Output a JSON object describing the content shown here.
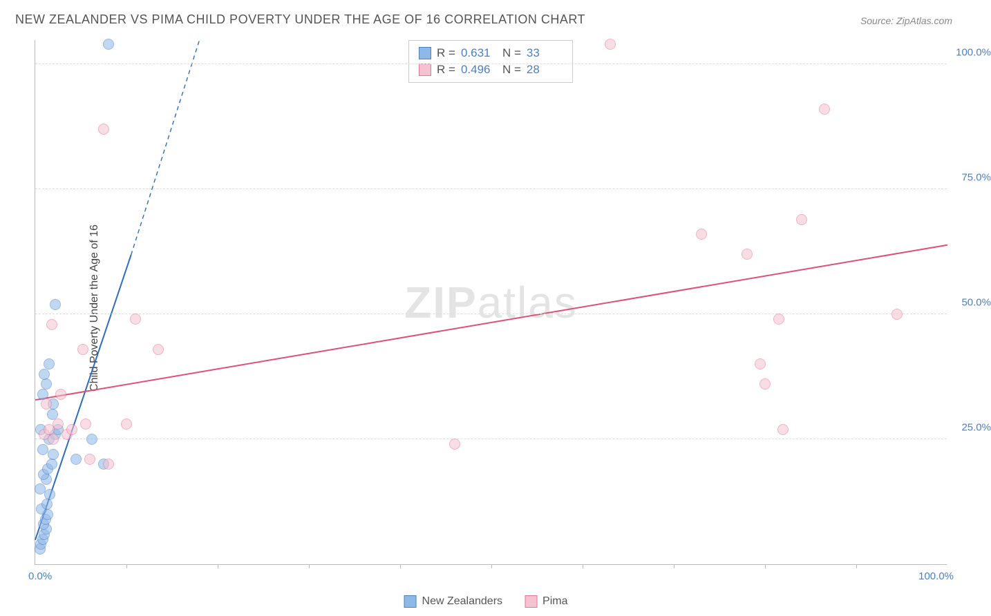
{
  "title": "NEW ZEALANDER VS PIMA CHILD POVERTY UNDER THE AGE OF 16 CORRELATION CHART",
  "source": "Source: ZipAtlas.com",
  "ylabel": "Child Poverty Under the Age of 16",
  "watermark_bold": "ZIP",
  "watermark_light": "atlas",
  "chart": {
    "type": "scatter",
    "xlim": [
      0,
      100
    ],
    "ylim": [
      0,
      105
    ],
    "yticks": [
      25,
      50,
      75,
      100
    ],
    "ytick_labels": [
      "25.0%",
      "50.0%",
      "75.0%",
      "100.0%"
    ],
    "xticks_minor": [
      10,
      20,
      30,
      40,
      50,
      60,
      70,
      80,
      90
    ],
    "xaxis_min_label": "0.0%",
    "xaxis_max_label": "100.0%",
    "background_color": "#ffffff",
    "grid_color": "#dddddd",
    "axis_color": "#bbbbbb",
    "marker_radius": 8,
    "marker_opacity": 0.55,
    "series": [
      {
        "name": "New Zealanders",
        "color_fill": "#8db8e8",
        "color_stroke": "#4a7fc9",
        "R": "0.631",
        "N": "33",
        "trend": {
          "x1": 0,
          "y1": 5,
          "x2_solid": 10.5,
          "y2_solid": 62,
          "x2_dash": 18,
          "y2_dash": 105,
          "color": "#2f6bc0",
          "width": 2
        },
        "points": [
          [
            0.5,
            3
          ],
          [
            0.6,
            4
          ],
          [
            0.8,
            5
          ],
          [
            1.0,
            6
          ],
          [
            1.2,
            7
          ],
          [
            0.9,
            8
          ],
          [
            1.1,
            9
          ],
          [
            1.4,
            10
          ],
          [
            0.7,
            11
          ],
          [
            1.3,
            12
          ],
          [
            1.6,
            14
          ],
          [
            0.5,
            15
          ],
          [
            1.2,
            17
          ],
          [
            0.9,
            18
          ],
          [
            1.4,
            19
          ],
          [
            1.8,
            20
          ],
          [
            2.0,
            22
          ],
          [
            0.8,
            23
          ],
          [
            1.5,
            25
          ],
          [
            2.2,
            26
          ],
          [
            0.6,
            27
          ],
          [
            1.9,
            30
          ],
          [
            2.5,
            27
          ],
          [
            0.8,
            34
          ],
          [
            1.2,
            36
          ],
          [
            1.0,
            38
          ],
          [
            2.0,
            32
          ],
          [
            1.5,
            40
          ],
          [
            2.2,
            52
          ],
          [
            7.5,
            20
          ],
          [
            4.5,
            21
          ],
          [
            6.2,
            25
          ],
          [
            8.0,
            104
          ]
        ]
      },
      {
        "name": "Pima",
        "color_fill": "#f5c2cf",
        "color_stroke": "#e57594",
        "R": "0.496",
        "N": "28",
        "trend": {
          "x1": 0,
          "y1": 33,
          "x2_solid": 100,
          "y2_solid": 64,
          "color": "#e04f76",
          "width": 2
        },
        "points": [
          [
            1.0,
            26
          ],
          [
            1.5,
            27
          ],
          [
            2.0,
            25
          ],
          [
            2.5,
            28
          ],
          [
            3.5,
            26
          ],
          [
            4.0,
            27
          ],
          [
            5.5,
            28
          ],
          [
            1.2,
            32
          ],
          [
            2.8,
            34
          ],
          [
            6.0,
            21
          ],
          [
            8.0,
            20
          ],
          [
            5.2,
            43
          ],
          [
            11.0,
            49
          ],
          [
            10.0,
            28
          ],
          [
            13.5,
            43
          ],
          [
            7.5,
            87
          ],
          [
            46.0,
            24
          ],
          [
            63.0,
            104
          ],
          [
            73.0,
            66
          ],
          [
            78.0,
            62
          ],
          [
            79.5,
            40
          ],
          [
            80.0,
            36
          ],
          [
            81.5,
            49
          ],
          [
            82.0,
            27
          ],
          [
            84.0,
            69
          ],
          [
            86.5,
            91
          ],
          [
            94.5,
            50
          ],
          [
            1.8,
            48
          ]
        ]
      }
    ]
  },
  "legend": {
    "x_items": [
      {
        "label": "New Zealanders",
        "fill": "#8db8e8",
        "stroke": "#4a7fc9"
      },
      {
        "label": "Pima",
        "fill": "#f5c2cf",
        "stroke": "#e57594"
      }
    ]
  }
}
